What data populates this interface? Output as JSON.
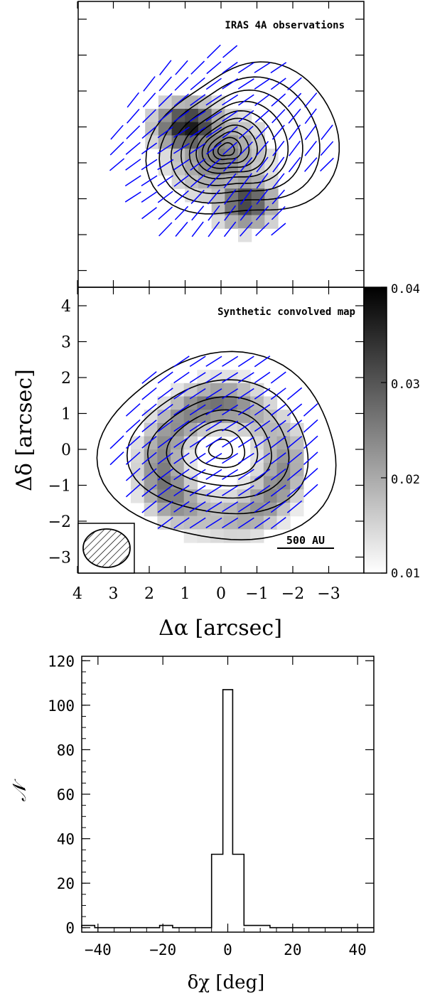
{
  "chart_data": [
    {
      "type": "map",
      "panel": "top",
      "title": "IRAS 4A observations",
      "xlim": [
        4,
        -4
      ],
      "ylim": [
        -3.7,
        4.5
      ],
      "colorbar": {
        "min": 0.01,
        "max": 0.04,
        "ticks": [
          "0.04",
          "0.03",
          "0.02",
          "0.01"
        ]
      },
      "vector_color": "#0000ff",
      "contour_color": "#000000"
    },
    {
      "type": "map",
      "panel": "middle",
      "title": "Synthetic convolved map",
      "xlabel": "Δα [arcsec]",
      "ylabel": "Δδ [arcsec]",
      "x_ticks": [
        "4",
        "3",
        "2",
        "1",
        "0",
        "−1",
        "−2",
        "−3"
      ],
      "y_ticks": [
        "4",
        "3",
        "2",
        "1",
        "0",
        "−1",
        "−2",
        "−3"
      ],
      "xlim": [
        4,
        -4
      ],
      "ylim": [
        -3.5,
        4.5
      ],
      "scale_bar_label": "500 AU",
      "beam": "hatched ellipse, lower-left"
    },
    {
      "type": "histogram",
      "panel": "bottom",
      "xlabel": "δχ [deg]",
      "ylabel": "𝒩",
      "xlim": [
        -45,
        45
      ],
      "ylim": [
        -2,
        122
      ],
      "x_ticks": [
        "−40",
        "−20",
        "0",
        "20",
        "40"
      ],
      "y_ticks": [
        "0",
        "20",
        "40",
        "60",
        "80",
        "100",
        "120"
      ],
      "bin_edges": [
        -45,
        -41,
        -37,
        -33,
        -29,
        -25,
        -21,
        -17,
        -13,
        -9,
        -5,
        -1.5,
        1.5,
        5,
        9,
        13,
        17,
        21,
        25,
        29,
        33,
        37,
        41,
        45
      ],
      "counts": [
        1,
        0,
        0,
        0,
        0,
        0,
        1,
        0,
        0,
        0,
        33,
        107,
        33,
        1,
        1,
        0,
        0,
        0,
        0,
        0,
        0,
        0,
        0
      ]
    }
  ]
}
